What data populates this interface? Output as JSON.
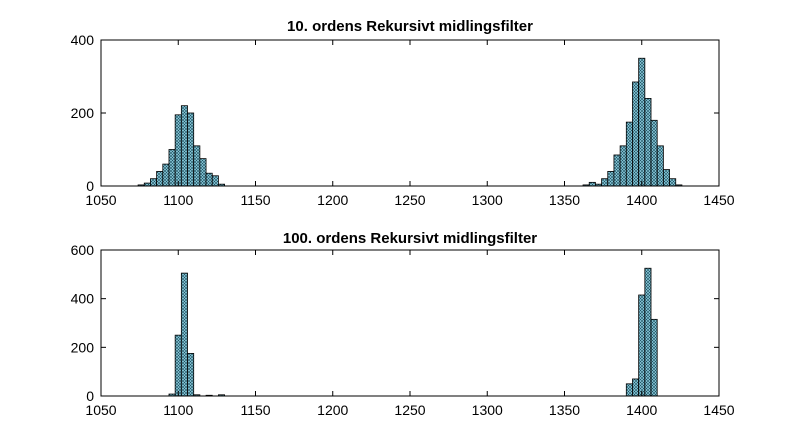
{
  "chart_data": [
    {
      "type": "bar",
      "title": "10. ordens Rekursivt midlingsfilter",
      "xlabel": "",
      "ylabel": "",
      "xlim": [
        1050,
        1450
      ],
      "ylim": [
        0,
        400
      ],
      "xticks": [
        "1050",
        "1100",
        "1150",
        "1200",
        "1250",
        "1300",
        "1350",
        "1400",
        "1450"
      ],
      "yticks": [
        "0",
        "200",
        "400"
      ],
      "bin_width": 4,
      "bars": [
        {
          "x": 1074,
          "value": 3
        },
        {
          "x": 1078,
          "value": 8
        },
        {
          "x": 1082,
          "value": 20
        },
        {
          "x": 1086,
          "value": 40
        },
        {
          "x": 1090,
          "value": 60
        },
        {
          "x": 1094,
          "value": 100
        },
        {
          "x": 1098,
          "value": 195
        },
        {
          "x": 1102,
          "value": 220
        },
        {
          "x": 1106,
          "value": 200
        },
        {
          "x": 1110,
          "value": 110
        },
        {
          "x": 1114,
          "value": 75
        },
        {
          "x": 1118,
          "value": 35
        },
        {
          "x": 1122,
          "value": 28
        },
        {
          "x": 1126,
          "value": 5
        },
        {
          "x": 1362,
          "value": 3
        },
        {
          "x": 1366,
          "value": 10
        },
        {
          "x": 1370,
          "value": 5
        },
        {
          "x": 1374,
          "value": 20
        },
        {
          "x": 1378,
          "value": 40
        },
        {
          "x": 1382,
          "value": 85
        },
        {
          "x": 1386,
          "value": 110
        },
        {
          "x": 1390,
          "value": 175
        },
        {
          "x": 1394,
          "value": 285
        },
        {
          "x": 1398,
          "value": 350
        },
        {
          "x": 1402,
          "value": 240
        },
        {
          "x": 1406,
          "value": 180
        },
        {
          "x": 1410,
          "value": 110
        },
        {
          "x": 1414,
          "value": 45
        },
        {
          "x": 1418,
          "value": 20
        },
        {
          "x": 1422,
          "value": 3
        }
      ]
    },
    {
      "type": "bar",
      "title": "100. ordens Rekursivt midlingsfilter",
      "xlabel": "",
      "ylabel": "",
      "xlim": [
        1050,
        1450
      ],
      "ylim": [
        0,
        600
      ],
      "xticks": [
        "1050",
        "1100",
        "1150",
        "1200",
        "1250",
        "1300",
        "1350",
        "1400",
        "1450"
      ],
      "yticks": [
        "0",
        "200",
        "400",
        "600"
      ],
      "bin_width": 4,
      "bars": [
        {
          "x": 1094,
          "value": 8
        },
        {
          "x": 1098,
          "value": 250
        },
        {
          "x": 1102,
          "value": 505
        },
        {
          "x": 1106,
          "value": 175
        },
        {
          "x": 1110,
          "value": 5
        },
        {
          "x": 1118,
          "value": 3
        },
        {
          "x": 1126,
          "value": 5
        },
        {
          "x": 1390,
          "value": 50
        },
        {
          "x": 1394,
          "value": 70
        },
        {
          "x": 1398,
          "value": 415
        },
        {
          "x": 1402,
          "value": 525
        },
        {
          "x": 1406,
          "value": 315
        }
      ]
    }
  ],
  "colors": {
    "bar_fill": "#8ecfe0",
    "bar_hatch": "#1b4c5c",
    "axis": "#000000",
    "background": "#ffffff"
  }
}
